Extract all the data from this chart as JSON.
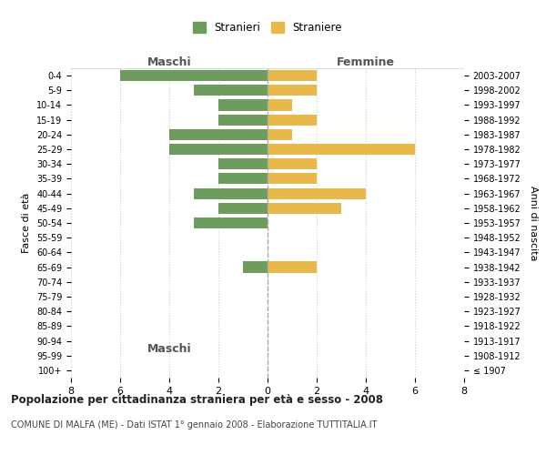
{
  "age_groups": [
    "100+",
    "95-99",
    "90-94",
    "85-89",
    "80-84",
    "75-79",
    "70-74",
    "65-69",
    "60-64",
    "55-59",
    "50-54",
    "45-49",
    "40-44",
    "35-39",
    "30-34",
    "25-29",
    "20-24",
    "15-19",
    "10-14",
    "5-9",
    "0-4"
  ],
  "birth_years": [
    "≤ 1907",
    "1908-1912",
    "1913-1917",
    "1918-1922",
    "1923-1927",
    "1928-1932",
    "1933-1937",
    "1938-1942",
    "1943-1947",
    "1948-1952",
    "1953-1957",
    "1958-1962",
    "1963-1967",
    "1968-1972",
    "1973-1977",
    "1978-1982",
    "1983-1987",
    "1988-1992",
    "1993-1997",
    "1998-2002",
    "2003-2007"
  ],
  "males": [
    0,
    0,
    0,
    0,
    0,
    0,
    0,
    1,
    0,
    0,
    3,
    2,
    3,
    2,
    2,
    4,
    4,
    2,
    2,
    3,
    6
  ],
  "females": [
    0,
    0,
    0,
    0,
    0,
    0,
    0,
    2,
    0,
    0,
    0,
    3,
    4,
    2,
    2,
    6,
    1,
    2,
    1,
    2,
    2
  ],
  "male_color": "#6e9c5e",
  "female_color": "#e8b84b",
  "title": "Popolazione per cittadinanza straniera per età e sesso - 2008",
  "subtitle": "COMUNE DI MALFA (ME) - Dati ISTAT 1° gennaio 2008 - Elaborazione TUTTITALIA.IT",
  "xlabel_left": "Maschi",
  "xlabel_right": "Femmine",
  "ylabel_left": "Fasce di età",
  "ylabel_right": "Anni di nascita",
  "legend_male": "Stranieri",
  "legend_female": "Straniere",
  "xlim": 8,
  "background_color": "#ffffff",
  "grid_color": "#cccccc",
  "bar_height": 0.75
}
